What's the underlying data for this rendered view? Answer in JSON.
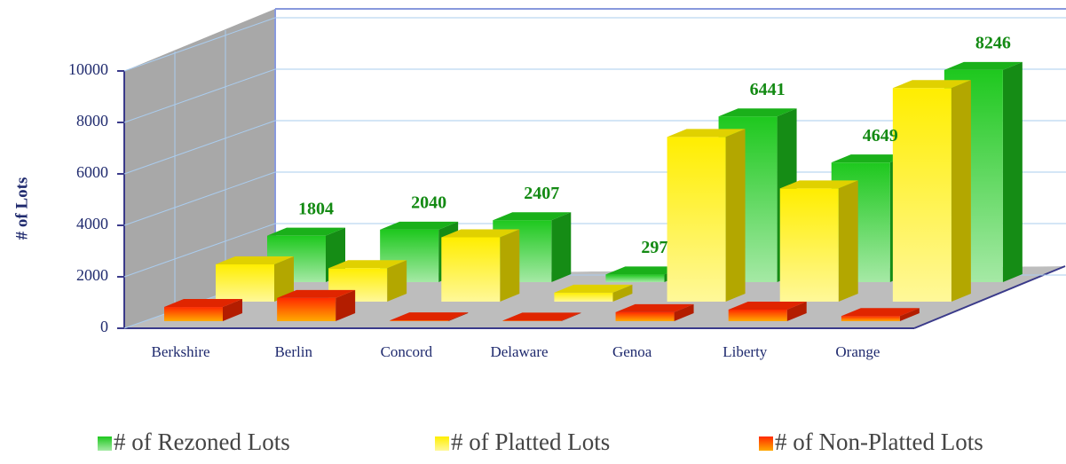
{
  "chart_data": {
    "type": "bar3d",
    "y_label": "# of Lots",
    "categories": [
      "Berkshire",
      "Berlin",
      "Concord",
      "Delaware",
      "Genoa",
      "Liberty",
      "Orange"
    ],
    "series": [
      {
        "name": "# of Rezoned Lots",
        "color": "#1ec81e",
        "data_labels": true,
        "values": [
          1804,
          2040,
          2407,
          297,
          6441,
          4649,
          8246
        ]
      },
      {
        "name": "# of Platted Lots",
        "color": "#ffee00",
        "values": [
          1450,
          1300,
          2500,
          350,
          6400,
          4400,
          8300
        ]
      },
      {
        "name": "# of Non-Platted Lots",
        "color": "#ff2a00",
        "values": [
          550,
          900,
          30,
          20,
          350,
          450,
          200
        ]
      }
    ],
    "ylim": [
      0,
      10000
    ],
    "yticks": [
      0,
      2000,
      4000,
      6000,
      8000,
      10000
    ],
    "grid": true
  }
}
